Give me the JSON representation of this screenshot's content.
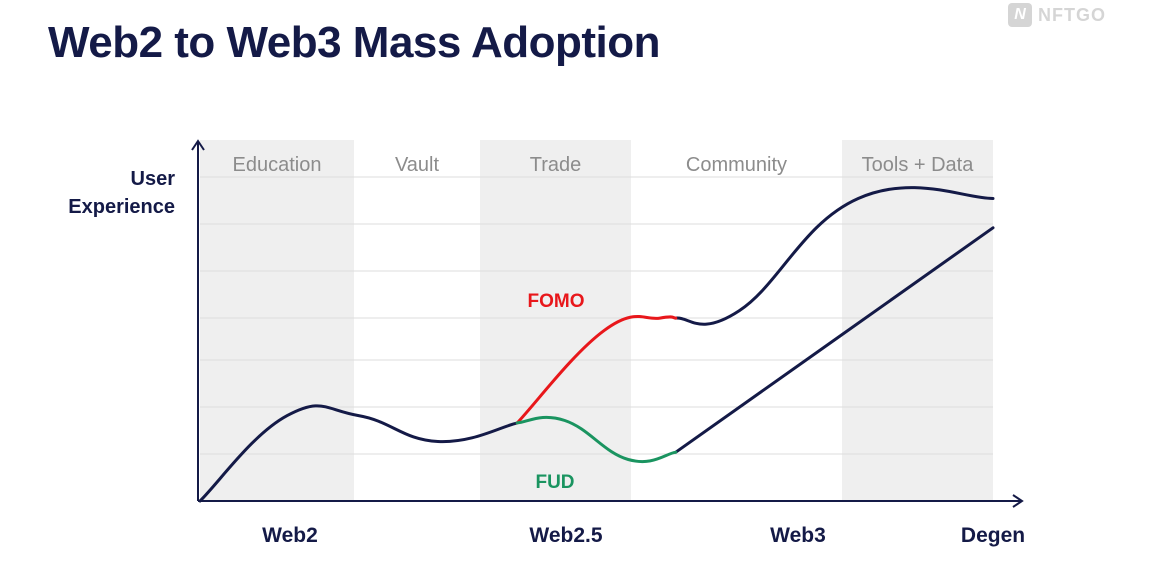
{
  "title": "Web2 to Web3 Mass Adoption",
  "logo": {
    "mark": "N",
    "text": "NFTGO",
    "icon": "nftgo-logo-icon"
  },
  "chart_data": {
    "type": "line",
    "title": "Web2 to Web3 Mass Adoption",
    "ylabel": [
      "User",
      "Experience"
    ],
    "xlabel": "",
    "x_ticks": [
      "Web2",
      "Web2.5",
      "Web3",
      "Degen"
    ],
    "bands": [
      {
        "label": "Education",
        "shaded": true
      },
      {
        "label": "Vault",
        "shaded": false
      },
      {
        "label": "Trade",
        "shaded": true
      },
      {
        "label": "Community",
        "shaded": false
      },
      {
        "label": "Tools + Data",
        "shaded": true
      }
    ],
    "grid": true,
    "annotations": [
      {
        "text": "FOMO",
        "color": "#e8171b"
      },
      {
        "text": "FUD",
        "color": "#1a9460"
      }
    ],
    "series": [
      {
        "name": "FOMO",
        "color": "#e8171b",
        "points": [
          [
            2.0,
            1.6
          ],
          [
            2.55,
            3.5
          ],
          [
            2.9,
            3.75
          ],
          [
            3.0,
            3.75
          ]
        ]
      },
      {
        "name": "FUD",
        "color": "#1a9460",
        "points": [
          [
            2.0,
            1.6
          ],
          [
            2.3,
            1.65
          ],
          [
            2.7,
            0.85
          ],
          [
            3.0,
            1.0
          ]
        ]
      }
    ],
    "curves": [
      {
        "role": "base",
        "color": "#141a47",
        "points": [
          [
            0.0,
            0.0
          ],
          [
            0.55,
            1.75
          ],
          [
            1.0,
            1.75
          ],
          [
            1.5,
            1.22
          ],
          [
            2.0,
            1.6
          ]
        ]
      },
      {
        "role": "upper",
        "color": "#141a47",
        "points": [
          [
            3.0,
            3.75
          ],
          [
            3.4,
            3.9
          ],
          [
            4.15,
            6.2
          ],
          [
            5.0,
            6.2
          ]
        ]
      },
      {
        "role": "lower",
        "color": "#141a47",
        "points": [
          [
            3.0,
            1.0
          ],
          [
            5.0,
            5.6
          ]
        ]
      }
    ],
    "xlim": [
      0,
      5
    ],
    "ylim": [
      0,
      7.4
    ]
  }
}
